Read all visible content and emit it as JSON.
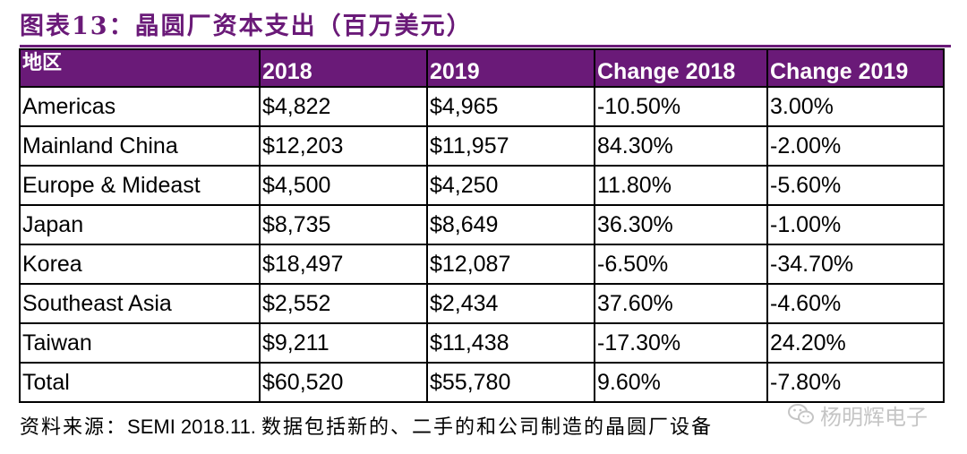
{
  "title": "图表13：晶圆厂资本支出（百万美元）",
  "table": {
    "headers": [
      "地区",
      "2018",
      "2019",
      "Change 2018",
      "Change 2019"
    ],
    "rows": [
      [
        "Americas",
        "$4,822",
        "$4,965",
        "-10.50%",
        "3.00%"
      ],
      [
        "Mainland China",
        "$12,203",
        "$11,957",
        "84.30%",
        "-2.00%"
      ],
      [
        "Europe & Mideast",
        "$4,500",
        "$4,250",
        "11.80%",
        "-5.60%"
      ],
      [
        "Japan",
        "$8,735",
        "$8,649",
        "36.30%",
        "-1.00%"
      ],
      [
        "Korea",
        "$18,497",
        "$12,087",
        "-6.50%",
        "-34.70%"
      ],
      [
        "Southeast Asia",
        "$2,552",
        "$2,434",
        "37.60%",
        "-4.60%"
      ],
      [
        "Taiwan",
        "$9,211",
        "$11,438",
        "-17.30%",
        "24.20%"
      ],
      [
        "Total",
        "$60,520",
        "$55,780",
        "9.60%",
        "-7.80%"
      ]
    ]
  },
  "source": {
    "prefix": "资料来源：",
    "main": "SEMI 2018.11.",
    "suffix": "数据包括新的、二手的和公司制造的晶圆厂设备"
  },
  "watermark": {
    "text": "杨明辉电子",
    "icon": "wechat-icon"
  },
  "colors": {
    "accent": "#6a1a78",
    "watermark": "#bfbfbf"
  }
}
